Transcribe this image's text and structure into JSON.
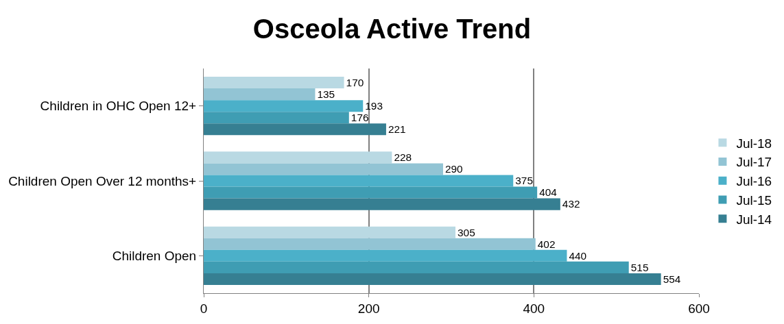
{
  "chart_data": {
    "type": "bar",
    "title": "Osceola Active Trend",
    "orientation": "horizontal",
    "categories": [
      "Children in OHC Open 12+",
      "Children Open Over 12 months+",
      "Children Open"
    ],
    "series": [
      {
        "name": "Jul-18",
        "color": "#b9d9e3",
        "values": [
          170,
          228,
          305
        ]
      },
      {
        "name": "Jul-17",
        "color": "#92c4d4",
        "values": [
          135,
          290,
          402
        ]
      },
      {
        "name": "Jul-16",
        "color": "#4bb0c9",
        "values": [
          193,
          375,
          440
        ]
      },
      {
        "name": "Jul-15",
        "color": "#3f9db3",
        "values": [
          176,
          404,
          515
        ]
      },
      {
        "name": "Jul-14",
        "color": "#367f92",
        "values": [
          221,
          432,
          554
        ]
      }
    ],
    "xlim": [
      0,
      600
    ],
    "xticks": [
      0,
      200,
      400,
      600
    ],
    "grid": "x",
    "legend": "right",
    "data_labels": true
  }
}
